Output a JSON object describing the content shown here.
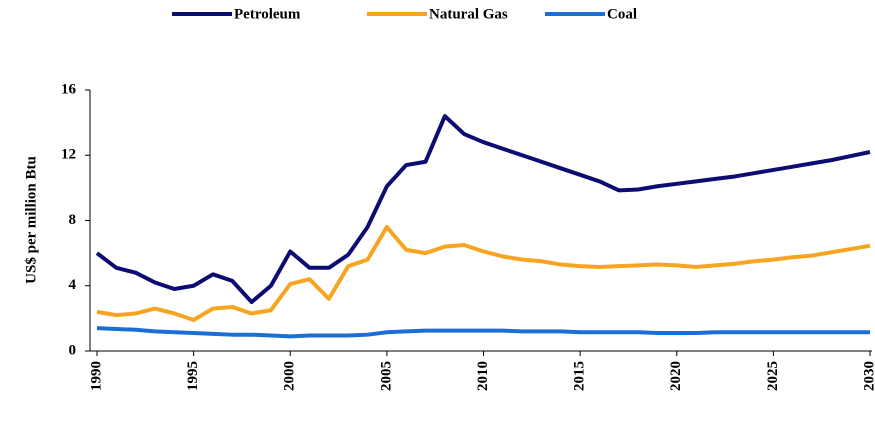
{
  "chart_data": {
    "type": "line",
    "ylabel": "US$ per million Btu",
    "x": [
      1990,
      1991,
      1992,
      1993,
      1994,
      1995,
      1996,
      1997,
      1998,
      1999,
      2000,
      2001,
      2002,
      2003,
      2004,
      2005,
      2006,
      2007,
      2008,
      2009,
      2010,
      2011,
      2012,
      2013,
      2014,
      2015,
      2016,
      2017,
      2018,
      2019,
      2020,
      2021,
      2022,
      2023,
      2024,
      2025,
      2026,
      2027,
      2028,
      2029,
      2030
    ],
    "series": [
      {
        "name": "Petroleum",
        "color": "#0c0c72",
        "values": [
          6.0,
          5.1,
          4.8,
          4.2,
          3.8,
          4.0,
          4.7,
          4.3,
          3.0,
          4.0,
          6.1,
          5.1,
          5.1,
          5.9,
          7.6,
          10.1,
          11.4,
          11.6,
          14.4,
          13.3,
          12.8,
          12.4,
          12.0,
          11.6,
          11.2,
          10.8,
          10.4,
          9.85,
          9.9,
          10.1,
          10.25,
          10.4,
          10.55,
          10.7,
          10.9,
          11.1,
          11.3,
          11.5,
          11.7,
          11.95,
          12.2
        ]
      },
      {
        "name": "Natural Gas",
        "color": "#f7a520",
        "values": [
          2.4,
          2.2,
          2.3,
          2.6,
          2.3,
          1.9,
          2.6,
          2.7,
          2.3,
          2.5,
          4.1,
          4.4,
          3.2,
          5.2,
          5.6,
          7.6,
          6.2,
          6.0,
          6.4,
          6.5,
          6.1,
          5.8,
          5.6,
          5.5,
          5.3,
          5.2,
          5.15,
          5.2,
          5.25,
          5.3,
          5.25,
          5.15,
          5.25,
          5.35,
          5.5,
          5.6,
          5.75,
          5.85,
          6.05,
          6.25,
          6.45
        ]
      },
      {
        "name": "Coal",
        "color": "#1a6fd4",
        "values": [
          1.4,
          1.35,
          1.3,
          1.2,
          1.15,
          1.1,
          1.05,
          1.0,
          1.0,
          0.95,
          0.9,
          0.95,
          0.95,
          0.95,
          1.0,
          1.15,
          1.2,
          1.25,
          1.25,
          1.25,
          1.25,
          1.25,
          1.2,
          1.2,
          1.2,
          1.15,
          1.15,
          1.15,
          1.15,
          1.1,
          1.1,
          1.1,
          1.15,
          1.15,
          1.15,
          1.15,
          1.15,
          1.15,
          1.15,
          1.15,
          1.15
        ]
      }
    ],
    "xlim": [
      1990,
      2030
    ],
    "xticks": [
      1990,
      1995,
      2000,
      2005,
      2010,
      2015,
      2020,
      2025,
      2030
    ],
    "ylim": [
      0,
      16
    ],
    "yticks": [
      0,
      4,
      8,
      12,
      16
    ],
    "legend": "top"
  }
}
